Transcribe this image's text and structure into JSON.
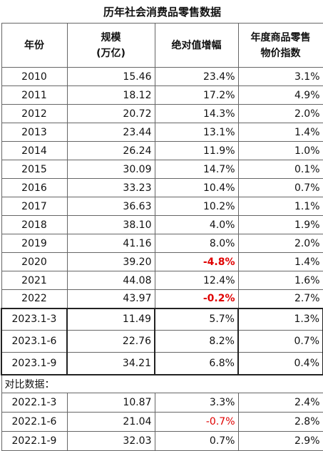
{
  "title": "历年社会消费品零售数据",
  "header": [
    [
      "年份"
    ],
    [
      "规模",
      "(万亿)"
    ],
    [
      "绝对值增幅"
    ],
    [
      "年度商品零售",
      "物价指数"
    ]
  ],
  "rows": [
    [
      "2010",
      "15.46",
      "23.4%",
      "3.1%"
    ],
    [
      "2011",
      "18.12",
      "17.2%",
      "4.9%"
    ],
    [
      "2012",
      "20.72",
      "14.3%",
      "2.0%"
    ],
    [
      "2013",
      "23.44",
      "13.1%",
      "1.4%"
    ],
    [
      "2014",
      "26.24",
      "11.9%",
      "1.0%"
    ],
    [
      "2015",
      "30.09",
      "14.7%",
      "0.1%"
    ],
    [
      "2016",
      "33.23",
      "10.4%",
      "0.7%"
    ],
    [
      "2017",
      "36.63",
      "10.2%",
      "1.1%"
    ],
    [
      "2018",
      "38.10",
      "4.0%",
      "1.9%"
    ],
    [
      "2019",
      "41.16",
      "8.0%",
      "2.0%"
    ],
    [
      "2020",
      "39.20",
      "-4.8%",
      "1.4%"
    ],
    [
      "2021",
      "44.08",
      "12.4%",
      "1.6%"
    ],
    [
      "2022",
      "43.97",
      "-0.2%",
      "2.7%"
    ]
  ],
  "recent_rows": [
    [
      "2023.1-3",
      "11.49",
      "5.7%",
      "1.3%"
    ],
    [
      "2023.1-6",
      "22.76",
      "8.2%",
      "0.7%"
    ],
    [
      "2023.1-9",
      "34.21",
      "6.8%",
      "0.4%"
    ]
  ],
  "compare_note": "对比数据：",
  "compare_rows": [
    [
      "2022.1-3",
      "10.87",
      "3.3%",
      "2.4%"
    ],
    [
      "2022.1-6",
      "21.04",
      "-0.7%",
      "2.8%"
    ],
    [
      "2022.1-9",
      "32.03",
      "0.7%",
      "2.9%"
    ]
  ]
}
